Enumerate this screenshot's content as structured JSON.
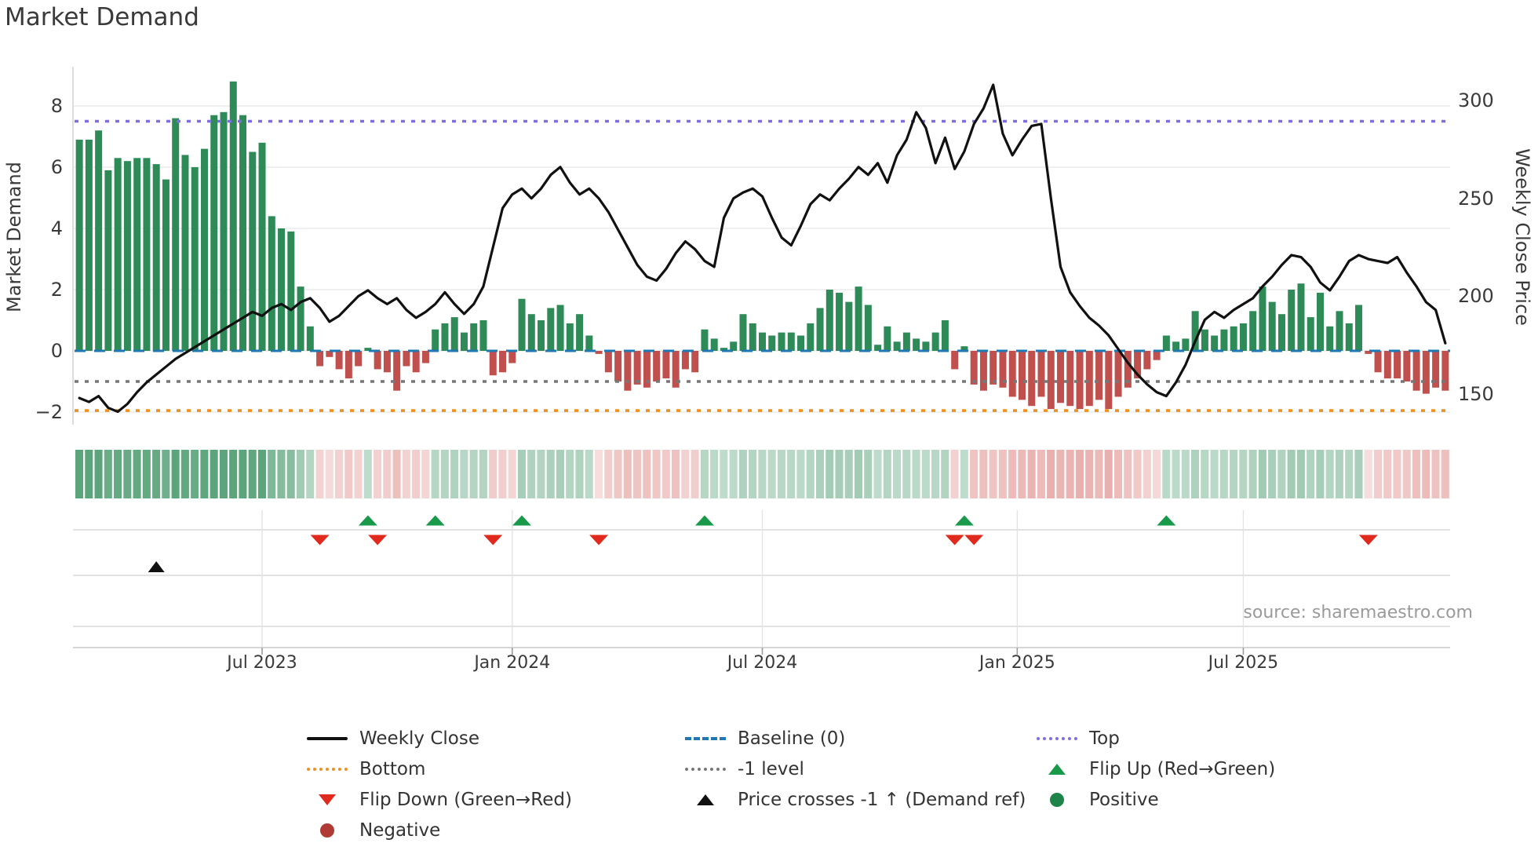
{
  "title": "Market Demand",
  "source": "source: sharemaestro.com",
  "axes": {
    "left_label": "Market Demand",
    "right_label": "Weekly Close Price",
    "left_ticks": [
      {
        "value": 8,
        "label": "8"
      },
      {
        "value": 6,
        "label": "6"
      },
      {
        "value": 4,
        "label": "4"
      },
      {
        "value": 2,
        "label": "2"
      },
      {
        "value": 0,
        "label": "0"
      },
      {
        "value": -2,
        "label": "−2"
      }
    ],
    "right_ticks": [
      {
        "value": 300,
        "label": "300"
      },
      {
        "value": 250,
        "label": "250"
      },
      {
        "value": 200,
        "label": "200"
      },
      {
        "value": 150,
        "label": "150"
      }
    ],
    "x_ticks": [
      {
        "label": "Jul 2023",
        "week": 19.5
      },
      {
        "label": "Jan 2024",
        "week": 45.5
      },
      {
        "label": "Jul 2024",
        "week": 71.5
      },
      {
        "label": "Jan 2025",
        "week": 98
      },
      {
        "label": "Jul 2025",
        "week": 121.5
      }
    ]
  },
  "palette": {
    "bar_positive": "#2e8b57",
    "bar_negative": "#c0504d",
    "price_line": "#111111",
    "baseline": "#1f77b4",
    "top_line": "#7d6fe3",
    "bottom_line": "#ef9122",
    "minus1_line": "#777777",
    "flip_up": "#189a4a",
    "flip_down": "#e02a1e",
    "price_cross": "#111111",
    "grid": "#ebebeb",
    "panel_grid": "#d9d9d9",
    "spine": "#d4d4d4"
  },
  "chart_data": {
    "type": "bar",
    "note": "weekly bars (Market Demand, left axis) + line (Weekly Close Price, right axis), Feb 2023 - Nov 2025",
    "ylim_left": [
      -2.5,
      9.3
    ],
    "ylim_right": [
      140,
      312
    ],
    "ref_lines": {
      "top": {
        "value": 7.5,
        "label": "Top"
      },
      "baseline": {
        "value": 0,
        "label": "Baseline (0)"
      },
      "minus1": {
        "value": -1,
        "label": "-1 level"
      },
      "bottom": {
        "value": -1.95,
        "label": "Bottom"
      }
    },
    "series": [
      {
        "name": "Market Demand",
        "axis": "left",
        "kind": "bar",
        "values": [
          6.9,
          6.9,
          7.2,
          5.9,
          6.3,
          6.2,
          6.3,
          6.3,
          6.1,
          5.6,
          7.6,
          6.4,
          6.0,
          6.6,
          7.7,
          7.8,
          8.8,
          7.7,
          6.5,
          6.8,
          4.4,
          4.0,
          3.9,
          2.1,
          0.8,
          -0.5,
          -0.2,
          -0.6,
          -0.9,
          -0.5,
          0.1,
          -0.6,
          -0.7,
          -1.3,
          -0.5,
          -0.7,
          -0.4,
          0.7,
          0.9,
          1.1,
          0.6,
          0.9,
          1.0,
          -0.8,
          -0.7,
          -0.4,
          1.7,
          1.2,
          1.0,
          1.4,
          1.5,
          0.9,
          1.2,
          0.5,
          -0.1,
          -0.7,
          -1.0,
          -1.3,
          -1.1,
          -1.2,
          -1.0,
          -0.9,
          -1.2,
          -0.6,
          -0.7,
          0.7,
          0.4,
          0.1,
          0.3,
          1.2,
          0.9,
          0.6,
          0.5,
          0.6,
          0.6,
          0.5,
          0.9,
          1.4,
          2.0,
          1.9,
          1.6,
          2.1,
          1.5,
          0.2,
          0.8,
          0.3,
          0.6,
          0.4,
          0.3,
          0.6,
          1.0,
          -0.6,
          0.15,
          -1.1,
          -1.3,
          -1.1,
          -1.2,
          -1.5,
          -1.6,
          -1.8,
          -1.5,
          -1.9,
          -1.7,
          -1.8,
          -1.9,
          -1.8,
          -1.6,
          -1.9,
          -1.5,
          -1.2,
          -0.9,
          -0.6,
          -0.3,
          0.5,
          0.3,
          0.4,
          1.3,
          0.7,
          0.5,
          0.7,
          0.8,
          0.9,
          1.3,
          2.1,
          1.6,
          1.2,
          2.0,
          2.2,
          1.1,
          1.9,
          0.8,
          1.3,
          0.9,
          1.5,
          -0.1,
          -0.7,
          -0.9,
          -0.9,
          -1.0,
          -1.3,
          -1.4,
          -1.2,
          -1.3
        ]
      },
      {
        "name": "Weekly Close",
        "axis": "right",
        "kind": "line",
        "values": [
          148,
          146,
          149,
          143,
          141,
          145,
          151,
          156,
          160,
          164,
          168,
          171,
          174,
          177,
          180,
          183,
          186,
          189,
          192,
          190,
          194,
          196,
          193,
          197,
          199,
          194,
          187,
          190,
          195,
          200,
          203,
          199,
          196,
          199,
          193,
          189,
          192,
          196,
          202,
          196,
          191,
          196,
          205,
          225,
          245,
          252,
          255,
          250,
          255,
          262,
          266,
          258,
          252,
          255,
          250,
          243,
          234,
          225,
          216,
          210,
          208,
          214,
          222,
          228,
          224,
          218,
          215,
          240,
          250,
          253,
          255,
          251,
          240,
          230,
          226,
          236,
          247,
          252,
          249,
          255,
          260,
          266,
          262,
          268,
          258,
          272,
          280,
          294,
          286,
          268,
          281,
          265,
          274,
          288,
          296,
          308,
          283,
          272,
          280,
          287,
          288,
          250,
          215,
          202,
          195,
          189,
          185,
          180,
          173,
          166,
          160,
          155,
          151,
          149,
          156,
          165,
          177,
          188,
          192,
          189,
          193,
          196,
          199,
          205,
          210,
          216,
          221,
          220,
          215,
          207,
          203,
          210,
          218,
          221,
          219,
          218,
          217,
          220,
          212,
          205,
          197,
          193,
          176
        ]
      }
    ],
    "heatmap": {
      "source": "demand_sign_and_intensity",
      "rows": 1
    },
    "markers": {
      "flip_up_weeks": [
        30,
        37,
        46,
        65,
        92,
        113
      ],
      "flip_down_weeks": [
        25,
        31,
        43,
        54,
        91,
        93,
        134
      ],
      "price_cross_weeks": [
        8
      ]
    }
  },
  "legend": {
    "columns": [
      {
        "items": [
          {
            "swatch": "line",
            "color": "#111111",
            "label": "Weekly Close"
          },
          {
            "swatch": "dotted",
            "color": "#ef9122",
            "label": "Bottom"
          },
          {
            "swatch": "tri-down",
            "color": "#e02a1e",
            "label": "Flip Down (Green→Red)"
          },
          {
            "swatch": "circle",
            "color": "#b03a34",
            "label": "Negative"
          }
        ]
      },
      {
        "items": [
          {
            "swatch": "dashed",
            "color": "#1f77b4",
            "label": "Baseline (0)"
          },
          {
            "swatch": "dotted",
            "color": "#777777",
            "label": "-1 level"
          },
          {
            "swatch": "tri-up",
            "color": "#111111",
            "label": "Price crosses -1 ↑ (Demand ref)"
          }
        ]
      },
      {
        "items": [
          {
            "swatch": "dotted",
            "color": "#7d6fe3",
            "label": "Top"
          },
          {
            "swatch": "tri-up",
            "color": "#189a4a",
            "label": "Flip Up (Red→Green)"
          },
          {
            "swatch": "circle",
            "color": "#1e8449",
            "label": "Positive"
          }
        ]
      }
    ]
  }
}
